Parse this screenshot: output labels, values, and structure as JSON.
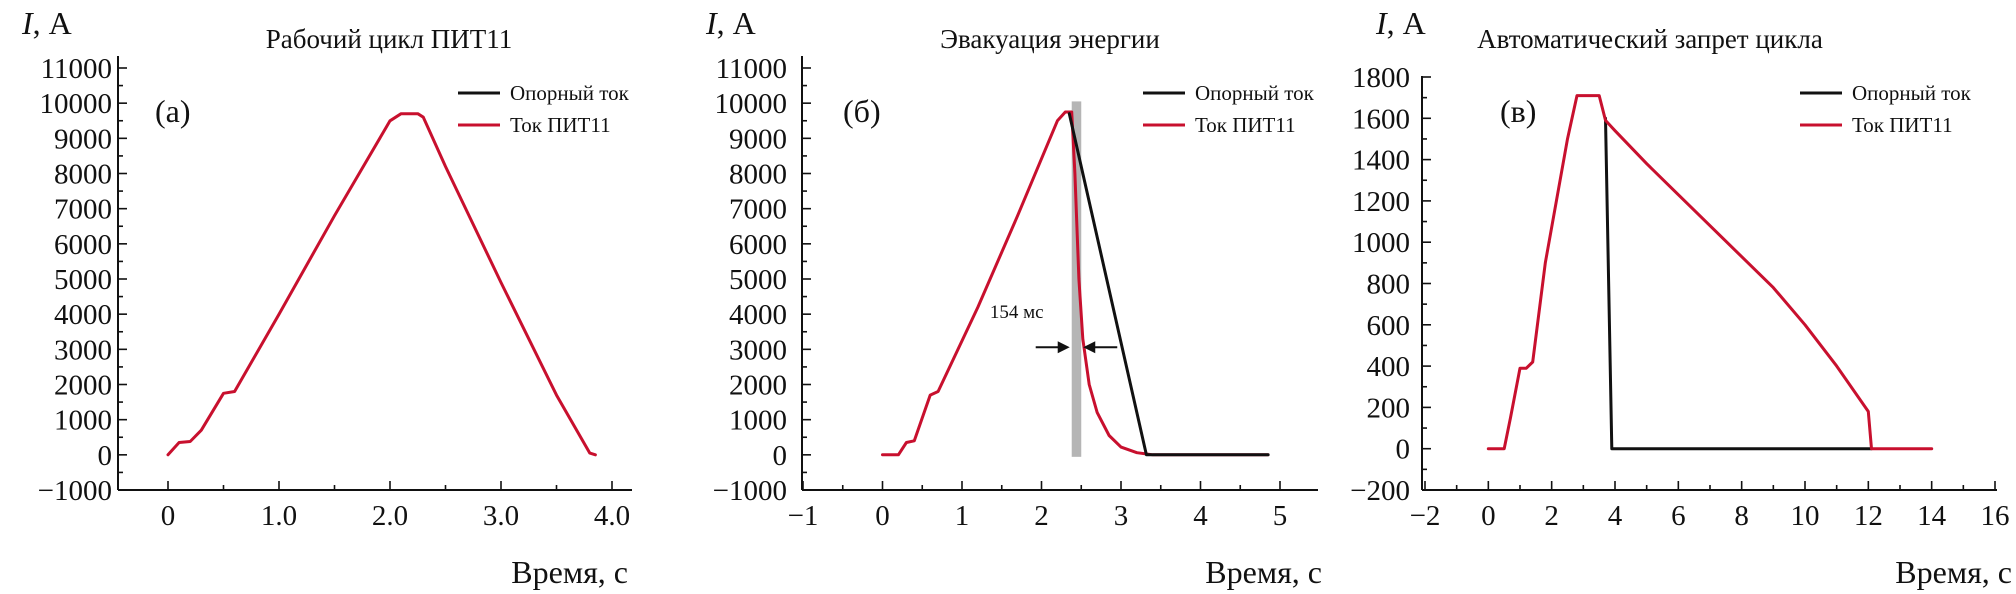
{
  "chart_data": [
    {
      "type": "line",
      "title": "Рабочий цикл ПИТ11",
      "panel_label": "(а)",
      "ylabel_var": "I",
      "ylabel_unit": ", А",
      "xlabel": "Время, с",
      "xlim": [
        -0.4,
        4.0
      ],
      "ylim": [
        -1000,
        11000
      ],
      "xticks": [
        0,
        1,
        2,
        3,
        4
      ],
      "xtick_labels": [
        "0",
        "1.0",
        "2.0",
        "3.0",
        "4.0"
      ],
      "yticks": [
        -1000,
        0,
        1000,
        2000,
        3000,
        4000,
        5000,
        6000,
        7000,
        8000,
        9000,
        10000,
        11000
      ],
      "ytick_labels": [
        "−1000",
        "0",
        "1000",
        "2000",
        "3000",
        "4000",
        "5000",
        "6000",
        "7000",
        "8000",
        "9000",
        "10000",
        "11000"
      ],
      "legend_position": "top-right",
      "series": [
        {
          "name": "Опорный ток",
          "color": "#111111",
          "x": [],
          "y": []
        },
        {
          "name": "Ток ПИТ11",
          "color": "#c8102e",
          "x": [
            0,
            0.1,
            0.2,
            0.3,
            0.5,
            0.6,
            1.0,
            1.5,
            2.0,
            2.1,
            2.25,
            2.3,
            2.5,
            3.0,
            3.5,
            3.8,
            3.85
          ],
          "y": [
            0,
            350,
            380,
            700,
            1750,
            1800,
            4000,
            6800,
            9500,
            9700,
            9700,
            9600,
            8200,
            4900,
            1700,
            50,
            0
          ]
        }
      ]
    },
    {
      "type": "line",
      "title": "Эвакуация энергии",
      "panel_label": "(б)",
      "ylabel_var": "I",
      "ylabel_unit": ", А",
      "xlabel": "Время, с",
      "xlim": [
        -1,
        5.5
      ],
      "ylim": [
        -1000,
        11000
      ],
      "xticks": [
        -1,
        0,
        1,
        2,
        3,
        4,
        5
      ],
      "xtick_labels": [
        "−1",
        "0",
        "1",
        "2",
        "3",
        "4",
        "5"
      ],
      "yticks": [
        -1000,
        0,
        1000,
        2000,
        3000,
        4000,
        5000,
        6000,
        7000,
        8000,
        9000,
        10000,
        11000
      ],
      "ytick_labels": [
        "−1000",
        "0",
        "1000",
        "2000",
        "3000",
        "4000",
        "5000",
        "6000",
        "7000",
        "8000",
        "9000",
        "10000",
        "11000"
      ],
      "legend_position": "top-right",
      "shaded_band": {
        "x0": 2.38,
        "x1": 2.5
      },
      "annotation": {
        "text": "154 мс",
        "x": 2.42,
        "y": 3600
      },
      "series": [
        {
          "name": "Опорный ток",
          "color": "#111111",
          "x": [
            2.35,
            3.32,
            4.85
          ],
          "y": [
            9700,
            0,
            0
          ]
        },
        {
          "name": "Ток ПИТ11",
          "color": "#c8102e",
          "x": [
            0,
            0.2,
            0.3,
            0.4,
            0.6,
            0.7,
            1.2,
            1.7,
            2.2,
            2.3,
            2.38,
            2.42,
            2.47,
            2.52,
            2.6,
            2.7,
            2.85,
            3.0,
            3.2,
            3.4,
            4.85
          ],
          "y": [
            0,
            0,
            350,
            400,
            1700,
            1800,
            4200,
            6800,
            9500,
            9750,
            9750,
            8000,
            5000,
            3300,
            2000,
            1200,
            550,
            220,
            60,
            0,
            0
          ]
        }
      ]
    },
    {
      "type": "line",
      "title": "Автоматический запрет цикла",
      "panel_label": "(в)",
      "ylabel_var": "I",
      "ylabel_unit": ", А",
      "xlabel": "Время, с",
      "xlim": [
        -2,
        16
      ],
      "ylim": [
        -200,
        1900
      ],
      "xticks": [
        -2,
        0,
        2,
        4,
        6,
        8,
        10,
        12,
        14,
        16
      ],
      "xtick_labels": [
        "−2",
        "0",
        "2",
        "4",
        "6",
        "8",
        "10",
        "12",
        "14",
        "16"
      ],
      "yticks": [
        -200,
        0,
        200,
        400,
        600,
        800,
        1000,
        1200,
        1400,
        1600,
        1800
      ],
      "ytick_labels": [
        "−200",
        "0",
        "200",
        "400",
        "600",
        "800",
        "1000",
        "1200",
        "1400",
        "1600",
        "1800"
      ],
      "legend_position": "top-right",
      "series": [
        {
          "name": "Опорный ток",
          "color": "#111111",
          "x": [
            3.7,
            3.9,
            12.1
          ],
          "y": [
            1600,
            0,
            0
          ]
        },
        {
          "name": "Ток ПИТ11",
          "color": "#c8102e",
          "x": [
            0,
            0.5,
            0.7,
            1.0,
            1.2,
            1.4,
            1.8,
            2.5,
            2.8,
            3.0,
            3.5,
            3.7,
            4.0,
            5.0,
            6.0,
            7.0,
            8.0,
            9.0,
            10.0,
            11.0,
            12.0,
            12.1,
            14.0
          ],
          "y": [
            0,
            0,
            150,
            390,
            390,
            420,
            900,
            1500,
            1710,
            1710,
            1710,
            1590,
            1540,
            1380,
            1230,
            1080,
            930,
            780,
            600,
            400,
            180,
            0,
            0
          ]
        }
      ]
    }
  ]
}
